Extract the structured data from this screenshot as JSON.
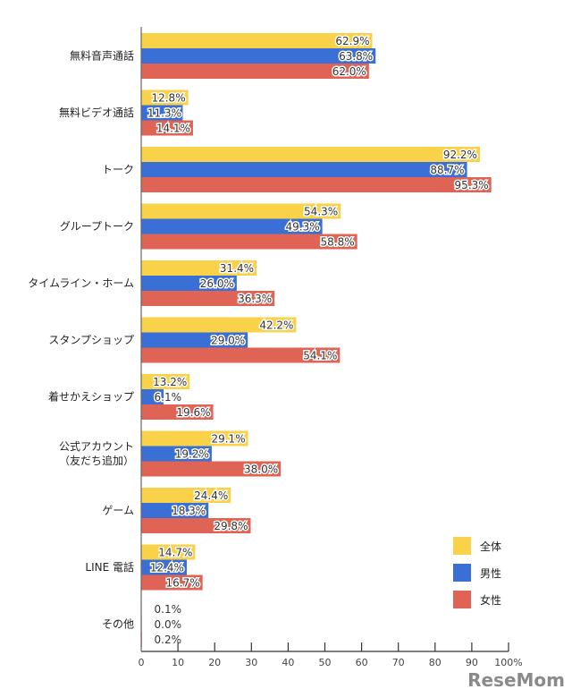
{
  "chart_data": {
    "type": "bar",
    "orientation": "horizontal",
    "categories": [
      "無料音声通話",
      "無料ビデオ通話",
      "トーク",
      "グループトーク",
      "タイムライン・ホーム",
      "スタンプショップ",
      "着せかえショップ",
      "公式アカウント\n（友だち追加）",
      "ゲーム",
      "LINE 電話",
      "その他"
    ],
    "series": [
      {
        "name": "全体",
        "color": "#f9d24a",
        "values": [
          62.9,
          12.8,
          92.2,
          54.3,
          31.4,
          42.2,
          13.2,
          29.1,
          24.4,
          14.7,
          0.1
        ]
      },
      {
        "name": "男性",
        "color": "#3a6fd6",
        "values": [
          63.8,
          11.3,
          88.7,
          49.3,
          26.0,
          29.0,
          6.1,
          19.2,
          18.3,
          12.4,
          0.0
        ]
      },
      {
        "name": "女性",
        "color": "#e06455",
        "values": [
          62.0,
          14.1,
          95.3,
          58.8,
          36.3,
          54.1,
          19.6,
          38.0,
          29.8,
          16.7,
          0.2
        ]
      }
    ],
    "xlim": [
      0,
      100
    ],
    "xticks": [
      "0",
      "10",
      "20",
      "30",
      "40",
      "50",
      "60",
      "70",
      "80",
      "90",
      "100%"
    ],
    "value_suffix": "%",
    "legend": "bottom-right",
    "grid": false
  },
  "watermark": "ReseMom"
}
